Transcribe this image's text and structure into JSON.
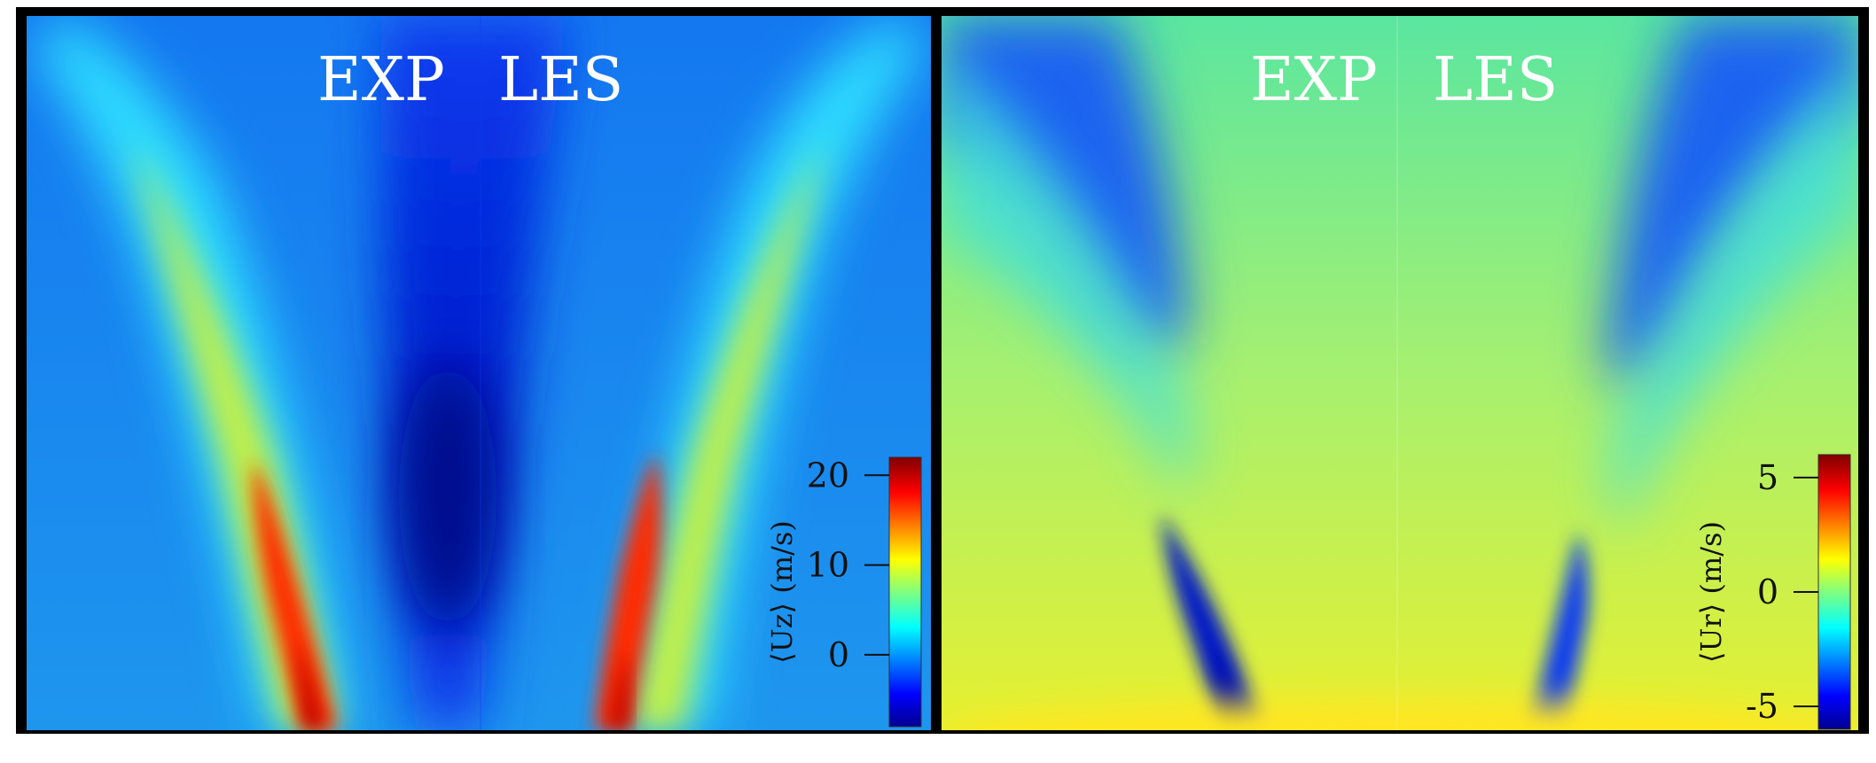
{
  "chart_data": [
    {
      "type": "heatmap",
      "quantity": "Uz",
      "colorbar_label": "⟨Uz⟩ (m/s)",
      "colorbar_range": [
        -8,
        22
      ],
      "colorbar_ticks": [
        0,
        10,
        20
      ],
      "colormap": "jet",
      "left_half_label": "EXP",
      "right_half_label": "LES"
    },
    {
      "type": "heatmap",
      "quantity": "Ur",
      "colorbar_label": "⟨Ur⟩ (m/s)",
      "colorbar_range": [
        -6,
        6
      ],
      "colorbar_ticks": [
        5,
        0,
        -5
      ],
      "colormap": "jet",
      "left_half_label": "EXP",
      "right_half_label": "LES"
    }
  ],
  "colors": {
    "frame": "#000000",
    "background": "#ffffff",
    "label_text": "#ffffff"
  }
}
